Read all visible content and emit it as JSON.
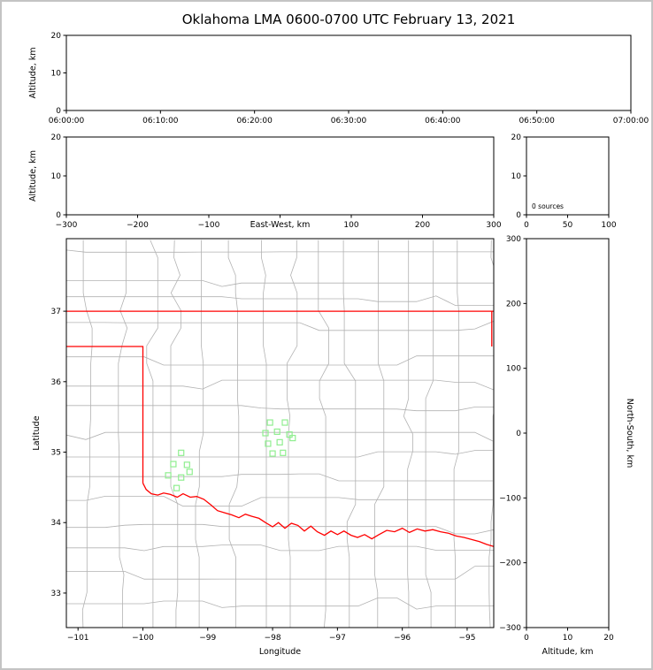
{
  "title": "Oklahoma LMA 0600-0700 UTC February 13, 2021",
  "colors": {
    "frame": "#000000",
    "state_border": "#ff0000",
    "county_lines": "#b2b2b2",
    "station_marker": "#90ee90"
  },
  "chart_data": [
    {
      "type": "scatter",
      "panel": "time_height",
      "ylabel": "Altitude, km",
      "ylim": [
        0,
        20
      ],
      "yticks": [
        0,
        10,
        20
      ],
      "xtick_labels": [
        "06:00:00",
        "06:10:00",
        "06:20:00",
        "06:30:00",
        "06:40:00",
        "06:50:00",
        "07:00:00"
      ],
      "points": []
    },
    {
      "type": "scatter",
      "panel": "eastwest_height",
      "xlabel": "East-West, km",
      "ylabel": "Altitude, km",
      "xlim": [
        -300,
        300
      ],
      "xticks": [
        -300,
        -200,
        -100,
        0,
        100,
        200,
        300
      ],
      "ylim": [
        0,
        20
      ],
      "yticks": [
        0,
        10,
        20
      ],
      "points": []
    },
    {
      "type": "histogram",
      "panel": "source_count",
      "annotation": "0 sources",
      "xlim": [
        0,
        100
      ],
      "xticks": [
        0,
        50,
        100
      ],
      "ylim": [
        0,
        20
      ],
      "yticks": [
        0,
        10,
        20
      ],
      "values": []
    },
    {
      "type": "scatter",
      "panel": "plan_view",
      "xlabel": "Longitude",
      "ylabel": "Latitude",
      "xlim": [
        -101.18,
        -94.59
      ],
      "ylim": [
        32.51,
        38.03
      ],
      "xticks": [
        -101,
        -100,
        -99,
        -98,
        -97,
        -96,
        -95
      ],
      "yticks": [
        33,
        34,
        35,
        36,
        37
      ],
      "points": [],
      "stations": [
        [
          -99.41,
          34.99
        ],
        [
          -99.53,
          34.83
        ],
        [
          -99.32,
          34.82
        ],
        [
          -99.61,
          34.67
        ],
        [
          -99.41,
          34.64
        ],
        [
          -99.28,
          34.72
        ],
        [
          -99.48,
          34.49
        ],
        [
          -98.04,
          35.42
        ],
        [
          -97.81,
          35.42
        ],
        [
          -98.11,
          35.27
        ],
        [
          -97.93,
          35.29
        ],
        [
          -97.74,
          35.25
        ],
        [
          -98.07,
          35.12
        ],
        [
          -97.89,
          35.14
        ],
        [
          -98.0,
          34.98
        ],
        [
          -97.84,
          34.99
        ],
        [
          -97.69,
          35.2
        ]
      ],
      "state_border_segments": [
        [
          [
            -101.18,
            37.0
          ],
          [
            -94.59,
            37.0
          ]
        ],
        [
          [
            -101.18,
            36.5
          ],
          [
            -100.0,
            36.5
          ],
          [
            -100.0,
            34.56
          ]
        ],
        [
          [
            -94.62,
            37.0
          ],
          [
            -94.62,
            36.5
          ]
        ],
        [
          [
            -100.0,
            34.56
          ],
          [
            -99.95,
            34.47
          ],
          [
            -99.87,
            34.41
          ],
          [
            -99.77,
            34.39
          ],
          [
            -99.68,
            34.42
          ],
          [
            -99.58,
            34.4
          ],
          [
            -99.47,
            34.36
          ],
          [
            -99.38,
            34.41
          ],
          [
            -99.27,
            34.36
          ],
          [
            -99.17,
            34.37
          ],
          [
            -99.06,
            34.33
          ],
          [
            -98.95,
            34.25
          ],
          [
            -98.85,
            34.17
          ],
          [
            -98.74,
            34.14
          ],
          [
            -98.63,
            34.11
          ],
          [
            -98.52,
            34.07
          ],
          [
            -98.42,
            34.12
          ],
          [
            -98.32,
            34.09
          ],
          [
            -98.21,
            34.06
          ],
          [
            -98.11,
            34.0
          ],
          [
            -98.0,
            33.94
          ],
          [
            -97.91,
            34.0
          ],
          [
            -97.81,
            33.92
          ],
          [
            -97.71,
            33.99
          ],
          [
            -97.61,
            33.96
          ],
          [
            -97.51,
            33.88
          ],
          [
            -97.41,
            33.95
          ],
          [
            -97.31,
            33.87
          ],
          [
            -97.2,
            33.82
          ],
          [
            -97.1,
            33.88
          ],
          [
            -97.0,
            33.83
          ],
          [
            -96.9,
            33.88
          ],
          [
            -96.79,
            33.82
          ],
          [
            -96.69,
            33.79
          ],
          [
            -96.58,
            33.83
          ],
          [
            -96.47,
            33.77
          ],
          [
            -96.36,
            33.83
          ],
          [
            -96.24,
            33.89
          ],
          [
            -96.12,
            33.87
          ],
          [
            -96.0,
            33.92
          ],
          [
            -95.89,
            33.86
          ],
          [
            -95.77,
            33.91
          ],
          [
            -95.65,
            33.88
          ],
          [
            -95.53,
            33.9
          ],
          [
            -95.41,
            33.87
          ],
          [
            -95.29,
            33.85
          ],
          [
            -95.17,
            33.81
          ],
          [
            -95.05,
            33.79
          ],
          [
            -94.93,
            33.76
          ],
          [
            -94.81,
            33.73
          ],
          [
            -94.7,
            33.69
          ],
          [
            -94.59,
            33.66
          ]
        ]
      ],
      "county_grid": {
        "seed": 13,
        "v_spacing_deg": 0.47,
        "h_spacing_deg": 0.38,
        "jitter_deg": 0.1
      }
    },
    {
      "type": "scatter",
      "panel": "northsouth_height",
      "xlabel": "Altitude, km",
      "ylabel": "North-South, km",
      "xlim": [
        0,
        20
      ],
      "xticks": [
        0,
        10,
        20
      ],
      "ylim": [
        -300,
        300
      ],
      "yticks": [
        300,
        200,
        100,
        0,
        -100,
        -200,
        -300
      ],
      "points": []
    }
  ]
}
